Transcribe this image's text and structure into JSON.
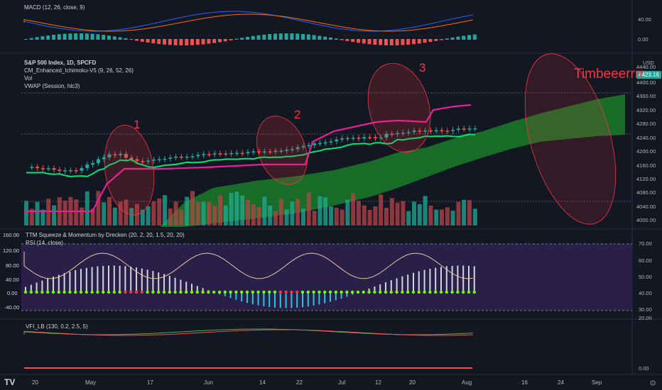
{
  "macd_pane": {
    "title": "MACD (12, 26, close, 9)",
    "axis": [
      "40.00",
      "0.00"
    ]
  },
  "main_pane": {
    "symbol": "S&P 500 Index, 1D, SPCFD",
    "indicators": [
      "CM_Enhanced_Ichimoku-V5 (9, 26, 52, 26)",
      "Vol",
      "VWAP (Session, hlc3)"
    ],
    "currency": "USD",
    "price_tag": "4423.16",
    "axis": [
      "4440.00",
      "4400.00",
      "4360.00",
      "4320.00",
      "4280.00",
      "4240.00",
      "4200.00",
      "4160.00",
      "4120.00",
      "4080.00",
      "4040.00",
      "4000.00"
    ],
    "annotations": [
      "1",
      "2",
      "3",
      "Timbeeerrrr"
    ]
  },
  "ttm_pane": {
    "title": "TTM Squeeze & Momentum by Drecken (20, 2, 20, 1.5, 20, 20)",
    "rsi_title": "RSI (14, close)",
    "left_axis": [
      "160.00",
      "120.00",
      "80.00",
      "40.00",
      "0.00",
      "-40.00"
    ],
    "right_axis": [
      "70.00",
      "60.00",
      "50.00",
      "40.00",
      "30.00"
    ]
  },
  "vfi_pane": {
    "title": "VFI_LB (130, 0.2, 2.5, 5)",
    "axis": [
      "20.00",
      "0.00"
    ]
  },
  "time_axis": [
    "20",
    "May",
    "17",
    "Jun",
    "14",
    "22",
    "Jul",
    "12",
    "20",
    "Aug",
    "16",
    "24",
    "Sep"
  ],
  "colors": {
    "background": "#131722",
    "up": "#26a69a",
    "down": "#ef5350",
    "tenkan": "#00e676",
    "vwap": "#e91e9c",
    "cloud": "#1b8a2a",
    "annotation": "#f23645"
  }
}
